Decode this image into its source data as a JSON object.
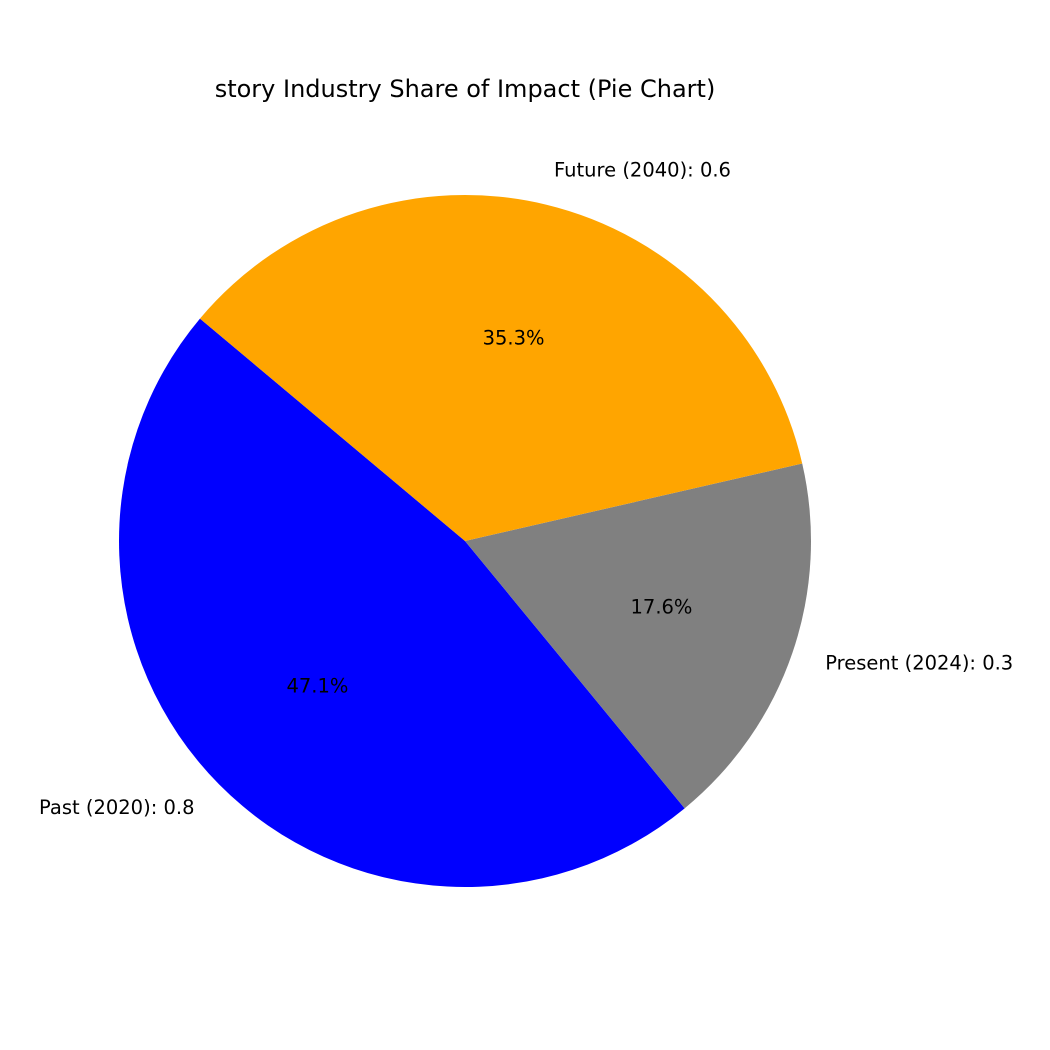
{
  "chart_data": {
    "type": "pie",
    "title": "story Industry Share of Impact (Pie Chart)",
    "slices": [
      {
        "label": "Past (2020): 0.8",
        "category": "Past (2020)",
        "value": 0.8,
        "percent_label": "47.1%",
        "color": "#0000ff"
      },
      {
        "label": "Present (2024): 0.3",
        "category": "Present (2024)",
        "value": 0.3,
        "percent_label": "17.6%",
        "color": "#808080"
      },
      {
        "label": "Future (2040): 0.6",
        "category": "Future (2040)",
        "value": 0.6,
        "percent_label": "35.3%",
        "color": "#ffa500"
      }
    ],
    "start_angle_deg": 140,
    "direction": "counterclockwise"
  }
}
